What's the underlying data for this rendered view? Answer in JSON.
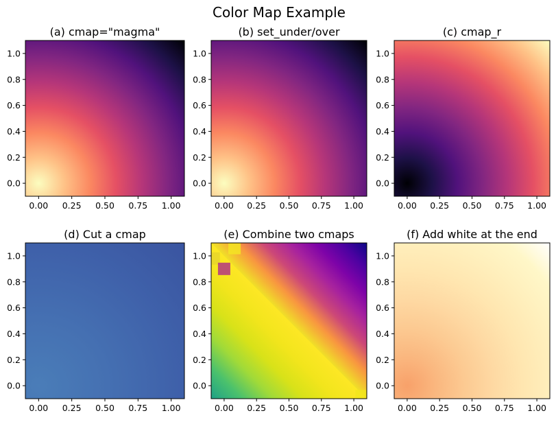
{
  "figure": {
    "title": "Color Map Example"
  },
  "chart_data": [
    {
      "type": "heatmap",
      "title": "(a) cmap=\"magma\"",
      "cmap": "magma",
      "field": "distance from (0,0)",
      "xlim": [
        -0.1,
        1.1
      ],
      "ylim": [
        -0.1,
        1.1
      ],
      "xticks": [
        "0.00",
        "0.25",
        "0.50",
        "0.75",
        "1.00"
      ],
      "yticks": [
        "0.0",
        "0.2",
        "0.4",
        "0.6",
        "0.8",
        "1.0"
      ],
      "colors": [
        "#fcfdbf",
        "#fec287",
        "#fb8861",
        "#e55064",
        "#b63679",
        "#822681",
        "#51127c",
        "#1d1147",
        "#000004"
      ]
    },
    {
      "type": "heatmap",
      "title": "(b) set_under/over",
      "cmap": "magma",
      "field": "distance from (0,0)",
      "xlim": [
        -0.1,
        1.1
      ],
      "ylim": [
        -0.1,
        1.1
      ],
      "xticks": [
        "0.00",
        "0.25",
        "0.50",
        "0.75",
        "1.00"
      ],
      "yticks": [
        "0.0",
        "0.2",
        "0.4",
        "0.6",
        "0.8",
        "1.0"
      ],
      "colors": [
        "#fcfdbf",
        "#fec287",
        "#fb8861",
        "#e55064",
        "#b63679",
        "#822681",
        "#51127c",
        "#1d1147",
        "#000004"
      ]
    },
    {
      "type": "heatmap",
      "title": "(c) cmap_r",
      "cmap": "magma_r",
      "field": "distance from (0,0)",
      "xlim": [
        -0.1,
        1.1
      ],
      "ylim": [
        -0.1,
        1.1
      ],
      "xticks": [
        "0.00",
        "0.25",
        "0.50",
        "0.75",
        "1.00"
      ],
      "yticks": [
        "0.0",
        "0.2",
        "0.4",
        "0.6",
        "0.8",
        "1.0"
      ],
      "colors": [
        "#000004",
        "#1d1147",
        "#51127c",
        "#822681",
        "#b63679",
        "#e55064",
        "#fb8861",
        "#fec287",
        "#fcfdbf"
      ]
    },
    {
      "type": "heatmap",
      "title": "(d) Cut a cmap",
      "cmap": "cut",
      "field": "distance from (0,0)",
      "xlim": [
        -0.1,
        1.1
      ],
      "ylim": [
        -0.1,
        1.1
      ],
      "xticks": [
        "0.00",
        "0.25",
        "0.50",
        "0.75",
        "1.00"
      ],
      "yticks": [
        "0.0",
        "0.2",
        "0.4",
        "0.6",
        "0.8",
        "1.0"
      ],
      "colors": [
        "#4a7db8",
        "#4570b2",
        "#3f61aa",
        "#3a54a0"
      ]
    },
    {
      "type": "heatmap",
      "title": "(e) Combine two cmaps",
      "cmap": "combined",
      "field": "sum x+y",
      "xlim": [
        -0.1,
        1.1
      ],
      "ylim": [
        -0.1,
        1.1
      ],
      "xticks": [
        "0.00",
        "0.25",
        "0.50",
        "0.75",
        "1.00"
      ],
      "yticks": [
        "0.0",
        "0.2",
        "0.4",
        "0.6",
        "0.8",
        "1.0"
      ],
      "colors_low": [
        "#1fa187",
        "#4ac16d",
        "#a0da39",
        "#d8e219",
        "#f2e51c",
        "#fde725"
      ],
      "colors_high": [
        "#f0e028",
        "#f89540",
        "#cc4778",
        "#a8239e",
        "#7e03a8",
        "#4c02a1",
        "#0d0887"
      ]
    },
    {
      "type": "heatmap",
      "title": "(f) Add white at the end",
      "cmap": "white_end",
      "field": "distance from (0,0)",
      "xlim": [
        -0.1,
        1.1
      ],
      "ylim": [
        -0.1,
        1.1
      ],
      "xticks": [
        "0.00",
        "0.25",
        "0.50",
        "0.75",
        "1.00"
      ],
      "yticks": [
        "0.0",
        "0.2",
        "0.4",
        "0.6",
        "0.8",
        "1.0"
      ],
      "colors": [
        "#f8a16a",
        "#fab77f",
        "#fcca92",
        "#fed9a3",
        "#ffe6b0",
        "#ffefbc",
        "#fff7c8",
        "#ffffff"
      ]
    }
  ]
}
